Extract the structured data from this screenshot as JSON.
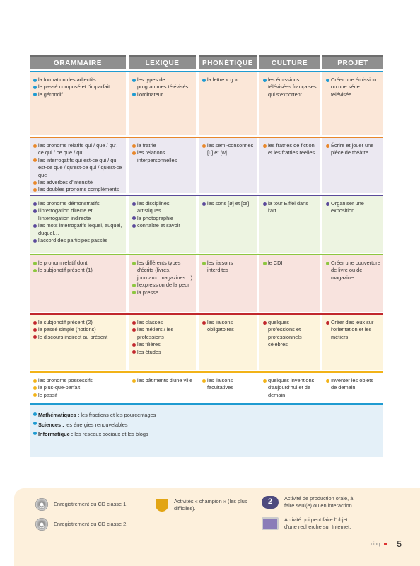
{
  "header": {
    "columns": [
      "GRAMMAIRE",
      "LEXIQUE",
      "PHONÉTIQUE",
      "CULTURE",
      "PROJET"
    ]
  },
  "rows": [
    {
      "color": "#1f9bd1",
      "cells": [
        [
          "la formation des adjectifs",
          "le passé composé et l'imparfait",
          "le gérondif"
        ],
        [
          "les types de programmes télévisés",
          "l'ordinateur"
        ],
        [
          "la lettre « g »"
        ],
        [
          "les émissions télévisées françaises qui s'exportent"
        ],
        [
          "Créer une émission ou une série télévisée"
        ]
      ]
    },
    {
      "color": "#e8872a",
      "cells": [
        [
          "les pronoms relatifs qui / que / qu', ce qui / ce que / qu'",
          "les interrogatifs qui est-ce qui / qui est-ce que / qu'est-ce qui / qu'est-ce que",
          "les adverbes d'intensité",
          "les doubles pronoms compléments"
        ],
        [
          "la fratrie",
          "les relations interpersonnelles"
        ],
        [
          "les semi-consonnes [ɥ] et [w]"
        ],
        [
          "les fratries de fiction et les fratries réelles"
        ],
        [
          "Écrire et jouer une pièce de théâtre"
        ]
      ]
    },
    {
      "color": "#5b4a9a",
      "cells": [
        [
          "les pronoms démonstratifs",
          "l'interrogation directe et l'interrogation indirecte",
          "les mots interrogatifs lequel, auquel, duquel…",
          "l'accord des participes passés"
        ],
        [
          "les disciplines artistiques",
          "la photographie",
          "connaître et savoir"
        ],
        [
          "les sons [ø] et [œ]"
        ],
        [
          "la tour Eiffel dans l'art"
        ],
        [
          "Organiser une exposition"
        ]
      ]
    },
    {
      "color": "#8dc63f",
      "cells": [
        [
          "le pronom relatif dont",
          "le subjonctif présent (1)"
        ],
        [
          "les différents types d'écrits (livres, journaux, magazines…)",
          "l'expression de la peur",
          "la presse"
        ],
        [
          "les liaisons interdites"
        ],
        [
          "le CDI"
        ],
        [
          "Créer une couverture de livre ou de magazine"
        ]
      ]
    },
    {
      "color": "#c1272d",
      "cells": [
        [
          "le subjonctif présent (2)",
          "le passé simple (notions)",
          "le discours indirect au présent"
        ],
        [
          "les classes",
          "les métiers / les professions",
          "les filières",
          "les études"
        ],
        [
          "les liaisons obligatoires"
        ],
        [
          "quelques professions et professionnels célèbres"
        ],
        [
          "Créer des jeux sur l'orientation et les métiers"
        ]
      ]
    },
    {
      "color": "#f2b318",
      "cells": [
        [
          "les pronoms possessifs",
          "le plus-que-parfait",
          "le passif"
        ],
        [
          "les bâtiments d'une ville"
        ],
        [
          "les liaisons facultatives"
        ],
        [
          "quelques inventions d'aujourd'hui et de demain"
        ],
        [
          "Inventer les objets de demain"
        ]
      ]
    }
  ],
  "cross": {
    "color": "#1f9bd1",
    "items": [
      {
        "label": "Mathématiques :",
        "text": "les fractions et les pourcentages"
      },
      {
        "label": "Sciences :",
        "text": "les énergies renouvelables"
      },
      {
        "label": "Informatique :",
        "text": "les réseaux sociaux et les blogs"
      }
    ]
  },
  "legend": [
    {
      "icon": "CD",
      "text": "Enregistrement du CD classe 1."
    },
    {
      "icon": "CD",
      "text": "Enregistrement du CD classe 2."
    },
    {
      "text": "Activités « champion » (les plus difficiles)."
    },
    {
      "icon": "2",
      "text": "Activité de production orale, à faire seul(e) ou en interaction."
    },
    {
      "text": "Activité qui peut faire l'objet d'une recherche sur Internet."
    }
  ],
  "footer": {
    "word": "cinq",
    "number": "5"
  }
}
